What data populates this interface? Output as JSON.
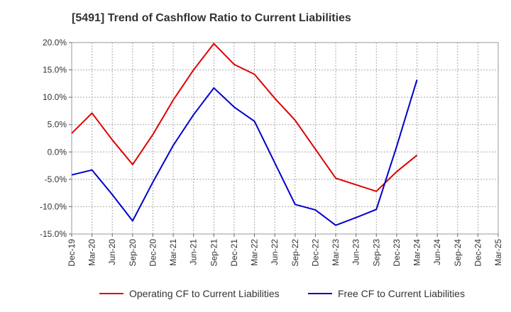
{
  "chart_data": {
    "type": "line",
    "title": "[5491]  Trend of Cashflow Ratio to Current Liabilities",
    "categories": [
      "Dec-19",
      "Mar-20",
      "Jun-20",
      "Sep-20",
      "Dec-20",
      "Mar-21",
      "Jun-21",
      "Sep-21",
      "Dec-21",
      "Mar-22",
      "Jun-22",
      "Sep-22",
      "Dec-22",
      "Mar-23",
      "Jun-23",
      "Sep-23",
      "Dec-23",
      "Mar-24",
      "Jun-24",
      "Sep-24",
      "Dec-24",
      "Mar-25"
    ],
    "y_ticks": [
      20.0,
      15.0,
      10.0,
      5.0,
      0.0,
      -5.0,
      -10.0,
      -15.0
    ],
    "y_tick_labels": [
      "20.0%",
      "15.0%",
      "10.0%",
      "5.0%",
      "0.0%",
      "-5.0%",
      "-10.0%",
      "-15.0%"
    ],
    "ylim": [
      -15,
      20
    ],
    "grid": true,
    "legend_position": "bottom",
    "series": [
      {
        "name": "Operating CF to Current Liabilities",
        "color": "#dd0000",
        "values": [
          3.4,
          7.1,
          2.2,
          -2.3,
          3.2,
          9.5,
          15.0,
          19.8,
          16.0,
          14.2,
          9.8,
          5.8,
          0.5,
          -4.8,
          -6.0,
          -7.2,
          -3.6,
          -0.6,
          null,
          null,
          null,
          null
        ]
      },
      {
        "name": "Free CF to Current Liabilities",
        "color": "#0000cc",
        "values": [
          -4.2,
          -3.3,
          -7.8,
          -12.6,
          -5.5,
          1.2,
          6.8,
          11.7,
          8.2,
          5.6,
          -2.0,
          -9.6,
          -10.6,
          -13.4,
          -12.0,
          -10.5,
          1.0,
          13.2,
          null,
          null,
          null,
          null
        ]
      }
    ]
  }
}
